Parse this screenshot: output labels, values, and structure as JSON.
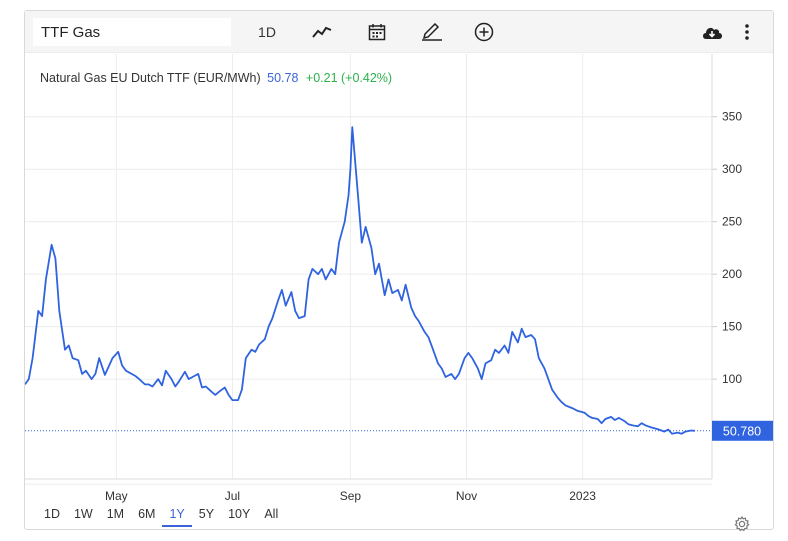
{
  "toolbar": {
    "symbol_value": "TTF Gas",
    "interval_label": "1D",
    "icons": [
      "line-chart-icon",
      "calendar-icon",
      "pencil-icon",
      "plus-circle-icon",
      "cloud-download-icon",
      "more-vertical-icon"
    ]
  },
  "legend": {
    "name": "Natural Gas EU Dutch TTF (EUR/MWh)",
    "last": "50.78",
    "change": "+0.21 (+0.42%)"
  },
  "price_tag": "50.780",
  "ranges": [
    "1D",
    "1W",
    "1M",
    "6M",
    "1Y",
    "5Y",
    "10Y",
    "All"
  ],
  "active_range": "1Y",
  "colors": {
    "line": "#2f63e0",
    "price_tag_bg": "#2f63e0",
    "change_positive": "#2bb24c",
    "grid": "#ececec"
  },
  "chart_data": {
    "type": "line",
    "title": "Natural Gas EU Dutch TTF (EUR/MWh)",
    "xlabel": "",
    "ylabel": "",
    "x_ticks": [
      {
        "label": "May",
        "date": "2022-05-01"
      },
      {
        "label": "Jul",
        "date": "2022-07-01"
      },
      {
        "label": "Sep",
        "date": "2022-09-01"
      },
      {
        "label": "Nov",
        "date": "2022-11-01"
      },
      {
        "label": "2023",
        "date": "2023-01-01"
      }
    ],
    "y_ticks": [
      100,
      150,
      200,
      250,
      300,
      350
    ],
    "xlim": [
      "2022-03-14",
      "2023-03-10"
    ],
    "ylim": [
      0,
      365
    ],
    "grid": true,
    "last_value": 50.78,
    "series": [
      {
        "values": [
          [
            "2022-03-14",
            95
          ],
          [
            "2022-03-16",
            100
          ],
          [
            "2022-03-18",
            120
          ],
          [
            "2022-03-21",
            165
          ],
          [
            "2022-03-23",
            160
          ],
          [
            "2022-03-25",
            195
          ],
          [
            "2022-03-28",
            228
          ],
          [
            "2022-03-30",
            215
          ],
          [
            "2022-04-01",
            165
          ],
          [
            "2022-04-04",
            128
          ],
          [
            "2022-04-06",
            132
          ],
          [
            "2022-04-08",
            120
          ],
          [
            "2022-04-11",
            118
          ],
          [
            "2022-04-13",
            105
          ],
          [
            "2022-04-15",
            108
          ],
          [
            "2022-04-18",
            100
          ],
          [
            "2022-04-20",
            105
          ],
          [
            "2022-04-22",
            120
          ],
          [
            "2022-04-25",
            104
          ],
          [
            "2022-04-27",
            112
          ],
          [
            "2022-04-29",
            120
          ],
          [
            "2022-05-02",
            126
          ],
          [
            "2022-05-04",
            113
          ],
          [
            "2022-05-06",
            108
          ],
          [
            "2022-05-09",
            105
          ],
          [
            "2022-05-11",
            103
          ],
          [
            "2022-05-13",
            100
          ],
          [
            "2022-05-16",
            95
          ],
          [
            "2022-05-18",
            95
          ],
          [
            "2022-05-20",
            93
          ],
          [
            "2022-05-23",
            100
          ],
          [
            "2022-05-25",
            94
          ],
          [
            "2022-05-27",
            108
          ],
          [
            "2022-05-30",
            100
          ],
          [
            "2022-06-01",
            93
          ],
          [
            "2022-06-03",
            98
          ],
          [
            "2022-06-06",
            107
          ],
          [
            "2022-06-08",
            100
          ],
          [
            "2022-06-10",
            102
          ],
          [
            "2022-06-13",
            105
          ],
          [
            "2022-06-15",
            92
          ],
          [
            "2022-06-17",
            93
          ],
          [
            "2022-06-20",
            88
          ],
          [
            "2022-06-22",
            85
          ],
          [
            "2022-06-24",
            88
          ],
          [
            "2022-06-27",
            92
          ],
          [
            "2022-06-29",
            85
          ],
          [
            "2022-07-01",
            80
          ],
          [
            "2022-07-04",
            80
          ],
          [
            "2022-07-06",
            90
          ],
          [
            "2022-07-08",
            120
          ],
          [
            "2022-07-11",
            128
          ],
          [
            "2022-07-13",
            126
          ],
          [
            "2022-07-15",
            133
          ],
          [
            "2022-07-18",
            138
          ],
          [
            "2022-07-20",
            150
          ],
          [
            "2022-07-22",
            158
          ],
          [
            "2022-07-25",
            175
          ],
          [
            "2022-07-27",
            185
          ],
          [
            "2022-07-29",
            170
          ],
          [
            "2022-08-01",
            183
          ],
          [
            "2022-08-03",
            165
          ],
          [
            "2022-08-05",
            158
          ],
          [
            "2022-08-08",
            160
          ],
          [
            "2022-08-10",
            195
          ],
          [
            "2022-08-12",
            205
          ],
          [
            "2022-08-15",
            200
          ],
          [
            "2022-08-17",
            205
          ],
          [
            "2022-08-19",
            195
          ],
          [
            "2022-08-22",
            205
          ],
          [
            "2022-08-24",
            200
          ],
          [
            "2022-08-26",
            230
          ],
          [
            "2022-08-29",
            250
          ],
          [
            "2022-08-31",
            275
          ],
          [
            "2022-09-01",
            300
          ],
          [
            "2022-09-02",
            340
          ],
          [
            "2022-09-05",
            275
          ],
          [
            "2022-09-07",
            230
          ],
          [
            "2022-09-09",
            245
          ],
          [
            "2022-09-12",
            225
          ],
          [
            "2022-09-14",
            200
          ],
          [
            "2022-09-16",
            210
          ],
          [
            "2022-09-19",
            180
          ],
          [
            "2022-09-21",
            195
          ],
          [
            "2022-09-23",
            182
          ],
          [
            "2022-09-26",
            185
          ],
          [
            "2022-09-28",
            175
          ],
          [
            "2022-09-30",
            190
          ],
          [
            "2022-10-03",
            168
          ],
          [
            "2022-10-05",
            160
          ],
          [
            "2022-10-07",
            155
          ],
          [
            "2022-10-10",
            145
          ],
          [
            "2022-10-12",
            140
          ],
          [
            "2022-10-14",
            130
          ],
          [
            "2022-10-17",
            115
          ],
          [
            "2022-10-19",
            110
          ],
          [
            "2022-10-21",
            102
          ],
          [
            "2022-10-24",
            105
          ],
          [
            "2022-10-26",
            100
          ],
          [
            "2022-10-28",
            105
          ],
          [
            "2022-10-31",
            120
          ],
          [
            "2022-11-02",
            125
          ],
          [
            "2022-11-04",
            120
          ],
          [
            "2022-11-07",
            110
          ],
          [
            "2022-11-09",
            100
          ],
          [
            "2022-11-11",
            115
          ],
          [
            "2022-11-14",
            118
          ],
          [
            "2022-11-16",
            128
          ],
          [
            "2022-11-18",
            125
          ],
          [
            "2022-11-21",
            132
          ],
          [
            "2022-11-23",
            125
          ],
          [
            "2022-11-25",
            145
          ],
          [
            "2022-11-28",
            135
          ],
          [
            "2022-11-30",
            148
          ],
          [
            "2022-12-02",
            140
          ],
          [
            "2022-12-05",
            142
          ],
          [
            "2022-12-07",
            138
          ],
          [
            "2022-12-09",
            120
          ],
          [
            "2022-12-12",
            110
          ],
          [
            "2022-12-14",
            100
          ],
          [
            "2022-12-16",
            90
          ],
          [
            "2022-12-19",
            82
          ],
          [
            "2022-12-21",
            78
          ],
          [
            "2022-12-23",
            75
          ],
          [
            "2022-12-27",
            72
          ],
          [
            "2022-12-29",
            70
          ],
          [
            "2023-01-02",
            68
          ],
          [
            "2023-01-04",
            65
          ],
          [
            "2023-01-06",
            63
          ],
          [
            "2023-01-09",
            62
          ],
          [
            "2023-01-11",
            58
          ],
          [
            "2023-01-13",
            62
          ],
          [
            "2023-01-16",
            64
          ],
          [
            "2023-01-18",
            61
          ],
          [
            "2023-01-20",
            63
          ],
          [
            "2023-01-23",
            60
          ],
          [
            "2023-01-25",
            57
          ],
          [
            "2023-01-27",
            56
          ],
          [
            "2023-01-30",
            55
          ],
          [
            "2023-02-01",
            58
          ],
          [
            "2023-02-03",
            56
          ],
          [
            "2023-02-06",
            54
          ],
          [
            "2023-02-08",
            53
          ],
          [
            "2023-02-10",
            52
          ],
          [
            "2023-02-13",
            50
          ],
          [
            "2023-02-15",
            52
          ],
          [
            "2023-02-17",
            48
          ],
          [
            "2023-02-20",
            49
          ],
          [
            "2023-02-22",
            48
          ],
          [
            "2023-02-24",
            50
          ],
          [
            "2023-02-27",
            51
          ],
          [
            "2023-03-01",
            50.78
          ]
        ]
      }
    ]
  }
}
